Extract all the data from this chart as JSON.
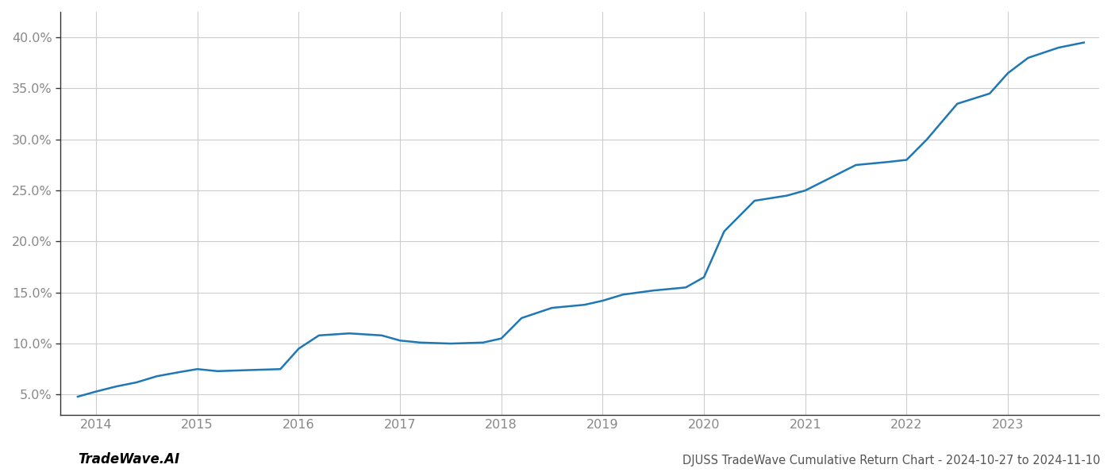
{
  "title": "DJUSS TradeWave Cumulative Return Chart - 2024-10-27 to 2024-11-10",
  "watermark": "TradeWave.AI",
  "line_color": "#1f77b4",
  "line_width": 1.8,
  "background_color": "#ffffff",
  "grid_color": "#cccccc",
  "x_values": [
    2013.82,
    2014.0,
    2014.2,
    2014.4,
    2014.6,
    2014.82,
    2015.0,
    2015.2,
    2015.5,
    2015.82,
    2016.0,
    2016.2,
    2016.5,
    2016.82,
    2017.0,
    2017.2,
    2017.5,
    2017.82,
    2018.0,
    2018.2,
    2018.5,
    2018.82,
    2019.0,
    2019.2,
    2019.5,
    2019.82,
    2020.0,
    2020.2,
    2020.5,
    2020.82,
    2021.0,
    2021.2,
    2021.5,
    2021.82,
    2022.0,
    2022.2,
    2022.5,
    2022.82,
    2023.0,
    2023.2,
    2023.5,
    2023.75
  ],
  "y_values": [
    4.8,
    5.3,
    5.8,
    6.2,
    6.8,
    7.2,
    7.5,
    7.3,
    7.4,
    7.5,
    9.5,
    10.8,
    11.0,
    10.8,
    10.3,
    10.1,
    10.0,
    10.1,
    10.5,
    12.5,
    13.5,
    13.8,
    14.2,
    14.8,
    15.2,
    15.5,
    16.5,
    21.0,
    24.0,
    24.5,
    25.0,
    26.0,
    27.5,
    27.8,
    28.0,
    30.0,
    33.5,
    34.5,
    36.5,
    38.0,
    39.0,
    39.5
  ],
  "xlim": [
    2013.65,
    2023.9
  ],
  "ylim": [
    3.0,
    42.5
  ],
  "yticks": [
    5.0,
    10.0,
    15.0,
    20.0,
    25.0,
    30.0,
    35.0,
    40.0
  ],
  "xticks": [
    2014,
    2015,
    2016,
    2017,
    2018,
    2019,
    2020,
    2021,
    2022,
    2023
  ],
  "tick_fontsize": 11.5,
  "watermark_fontsize": 12,
  "title_fontsize": 10.5,
  "spine_color": "#333333",
  "tick_color": "#888888"
}
